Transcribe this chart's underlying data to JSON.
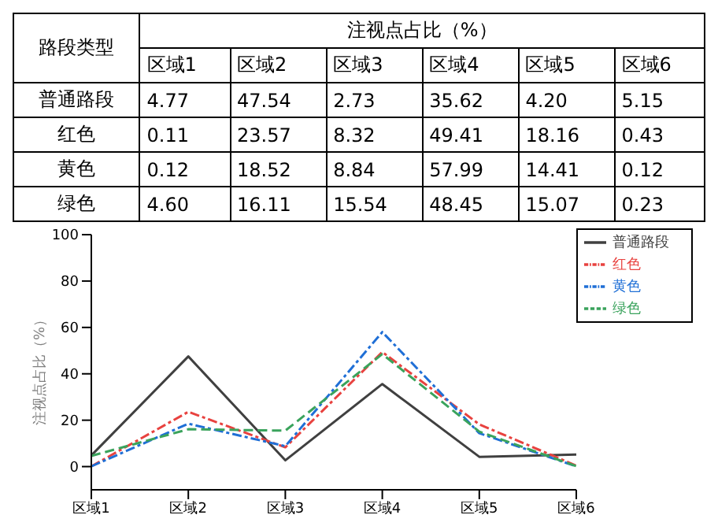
{
  "chart_data": [
    {
      "type": "heatmap",
      "title": "注视点占比（%）",
      "ylabel": "路段类型",
      "categories": [
        "区域1",
        "区域2",
        "区域3",
        "区域4",
        "区域5",
        "区域6"
      ],
      "y_categories": [
        "普通路段",
        "红色",
        "黄色",
        "绿色"
      ],
      "data_labels": true,
      "cells": [
        [
          4.77,
          47.54,
          2.73,
          35.62,
          4.2,
          5.15
        ],
        [
          0.11,
          23.57,
          8.32,
          49.41,
          18.16,
          0.43
        ],
        [
          0.12,
          18.52,
          8.84,
          57.99,
          14.41,
          0.12
        ],
        [
          4.6,
          16.11,
          15.54,
          48.45,
          15.07,
          0.23
        ]
      ],
      "cell_labels": [
        [
          "4.77",
          "47.54",
          "2.73",
          "35.62",
          "4.20",
          "5.15"
        ],
        [
          "0.11",
          "23.57",
          "8.32",
          "49.41",
          "18.16",
          "0.43"
        ],
        [
          "0.12",
          "18.52",
          "8.84",
          "57.99",
          "14.41",
          "0.12"
        ],
        [
          "4.60",
          "16.11",
          "15.54",
          "48.45",
          "15.07",
          "0.23"
        ]
      ]
    },
    {
      "type": "line",
      "ylabel": "注视点占比（%）",
      "categories": [
        "区域1",
        "区域2",
        "区域3",
        "区域4",
        "区域5",
        "区域6"
      ],
      "series": [
        {
          "name": "普通路段",
          "color": "#404040",
          "line_style": "solid",
          "values": [
            4.8,
            47.5,
            2.7,
            35.6,
            4.2,
            5.2
          ]
        },
        {
          "name": "红色",
          "color": "#e8423f",
          "line_style": "dashdot",
          "values": [
            0.1,
            23.6,
            8.3,
            49.4,
            18.2,
            0.4
          ]
        },
        {
          "name": "黄色",
          "color": "#1f6fd6",
          "line_style": "dashdot",
          "values": [
            0.1,
            18.5,
            8.8,
            58.0,
            14.4,
            0.1
          ]
        },
        {
          "name": "绿色",
          "color": "#3aa35c",
          "line_style": "dashed",
          "values": [
            4.6,
            16.1,
            15.5,
            48.5,
            15.1,
            0.2
          ]
        }
      ],
      "ylim": [
        -10,
        100
      ],
      "yticks": [
        0,
        20,
        40,
        60,
        80,
        100
      ],
      "grid": false,
      "legend": "top right",
      "marker": "none"
    }
  ]
}
